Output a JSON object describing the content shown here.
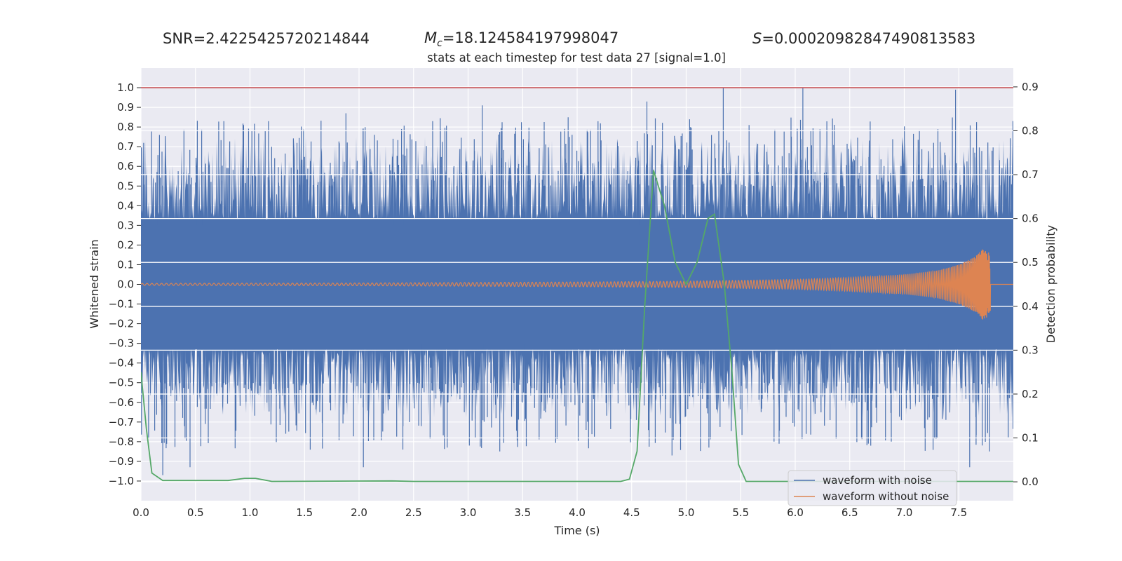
{
  "header": {
    "snr": "SNR=2.4225425720214844",
    "mc_symbol": "M",
    "mc_subscript": "c",
    "mc_value": "=18.124584197998047",
    "s_symbol": "S",
    "s_value": "=0.00020982847490813583"
  },
  "chart_data": {
    "type": "line",
    "title": "stats at each timestep for test data 27 [signal=1.0]",
    "xlabel": "Time (s)",
    "ylabel": "Whitened strain",
    "y2label": "Detection probability",
    "xlim": [
      0.0,
      8.0
    ],
    "ylim": [
      -1.1,
      1.1
    ],
    "y2lim": [
      -0.043,
      0.943
    ],
    "x_ticks": [
      "0.0",
      "0.5",
      "1.0",
      "1.5",
      "2.0",
      "2.5",
      "3.0",
      "3.5",
      "4.0",
      "4.5",
      "5.0",
      "5.5",
      "6.0",
      "6.5",
      "7.0",
      "7.5"
    ],
    "y_ticks": [
      "1.0",
      "0.9",
      "0.8",
      "0.7",
      "0.6",
      "0.5",
      "0.4",
      "0.3",
      "0.2",
      "0.1",
      "0.0",
      "−0.1",
      "−0.2",
      "−0.3",
      "−0.4",
      "−0.5",
      "−0.6",
      "−0.7",
      "−0.8",
      "−0.9",
      "−1.0"
    ],
    "y2_ticks": [
      "0.9",
      "0.8",
      "0.7",
      "0.6",
      "0.5",
      "0.4",
      "0.3",
      "0.2",
      "0.1",
      "0.0"
    ],
    "grid": true,
    "legend_position": "bottom-right",
    "colors": {
      "background": "#eaeaf2",
      "grid": "#ffffff",
      "noise": "#4c72b0",
      "signal": "#dd8452",
      "probability": "#55a868",
      "threshold": "#c44e52"
    },
    "threshold_y": 1.0,
    "series": [
      {
        "name": "waveform with noise",
        "stroke": "#4c72b0",
        "description_peaks": [
          {
            "x": 0.17,
            "y": 0.76
          },
          {
            "x": 0.76,
            "y": 0.83
          },
          {
            "x": 1.17,
            "y": 0.83
          },
          {
            "x": 1.88,
            "y": 0.87
          },
          {
            "x": 3.13,
            "y": 0.91
          },
          {
            "x": 4.64,
            "y": 0.93
          },
          {
            "x": 5.34,
            "y": 1.0
          },
          {
            "x": 6.07,
            "y": 1.0
          },
          {
            "x": 7.47,
            "y": 0.99
          },
          {
            "x": 0.2,
            "y": -0.97
          },
          {
            "x": 0.45,
            "y": -0.93
          },
          {
            "x": 2.04,
            "y": -0.93
          },
          {
            "x": 4.87,
            "y": -0.87
          },
          {
            "x": 7.6,
            "y": -0.93
          }
        ]
      },
      {
        "name": "waveform without noise",
        "stroke": "#dd8452",
        "envelope": [
          [
            0.0,
            0.005
          ],
          [
            2.0,
            0.007
          ],
          [
            4.0,
            0.012
          ],
          [
            5.0,
            0.016
          ],
          [
            6.0,
            0.025
          ],
          [
            6.5,
            0.035
          ],
          [
            7.0,
            0.05
          ],
          [
            7.3,
            0.07
          ],
          [
            7.5,
            0.1
          ],
          [
            7.65,
            0.14
          ],
          [
            7.72,
            0.18
          ],
          [
            7.78,
            0.16
          ]
        ],
        "end_time": 7.79
      },
      {
        "name": "Detection probability",
        "stroke": "#55a868",
        "axis": "right",
        "points": [
          [
            0.0,
            0.25
          ],
          [
            0.05,
            0.12
          ],
          [
            0.1,
            0.02
          ],
          [
            0.2,
            0.003
          ],
          [
            0.5,
            0.003
          ],
          [
            0.8,
            0.003
          ],
          [
            0.95,
            0.008
          ],
          [
            1.05,
            0.008
          ],
          [
            1.2,
            0.001
          ],
          [
            2.3,
            0.002
          ],
          [
            2.5,
            0.001
          ],
          [
            4.4,
            0.001
          ],
          [
            4.48,
            0.006
          ],
          [
            4.55,
            0.07
          ],
          [
            4.62,
            0.4
          ],
          [
            4.7,
            0.71
          ],
          [
            4.8,
            0.63
          ],
          [
            4.9,
            0.5
          ],
          [
            5.0,
            0.45
          ],
          [
            5.1,
            0.5
          ],
          [
            5.2,
            0.6
          ],
          [
            5.26,
            0.61
          ],
          [
            5.35,
            0.45
          ],
          [
            5.42,
            0.25
          ],
          [
            5.48,
            0.04
          ],
          [
            5.55,
            0.001
          ],
          [
            8.0,
            0.001
          ]
        ]
      }
    ]
  }
}
